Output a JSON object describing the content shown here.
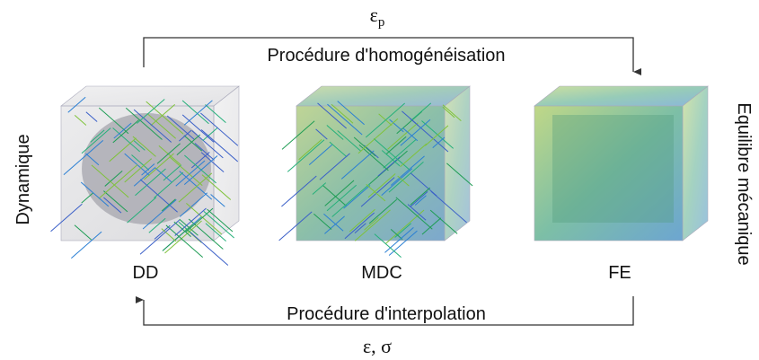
{
  "top_label": {
    "symbol": "ε",
    "subscript": "p"
  },
  "top_arrow_label": "Procédure d'homogénéisation",
  "bottom_arrow_label": "Procédure d'interpolation",
  "bottom_label": "ε, σ",
  "left_label": "Dynamique",
  "right_label": "Equilibre mécanique",
  "nodes": [
    {
      "label": "DD"
    },
    {
      "label": "MDC"
    },
    {
      "label": "FE"
    }
  ]
}
